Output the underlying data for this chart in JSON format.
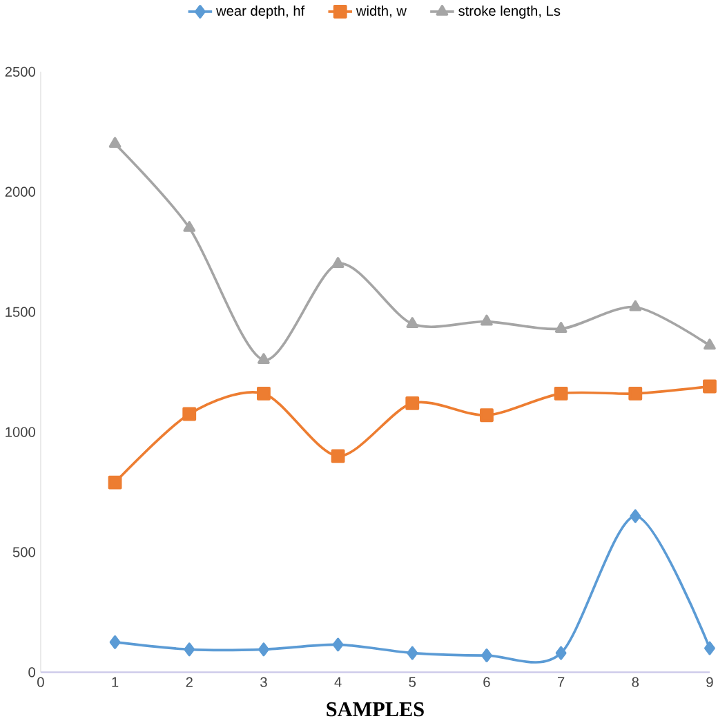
{
  "chart_data": {
    "type": "line",
    "xlabel": "SAMPLES",
    "x": [
      1,
      2,
      3,
      4,
      5,
      6,
      7,
      8,
      9
    ],
    "series": [
      {
        "name": "wear depth, hf",
        "color": "#5b9bd5",
        "marker": "diamond",
        "values": [
          125,
          95,
          95,
          115,
          80,
          70,
          80,
          650,
          100
        ]
      },
      {
        "name": "width, w",
        "color": "#ed7d31",
        "marker": "square",
        "values": [
          790,
          1075,
          1160,
          900,
          1120,
          1070,
          1160,
          1160,
          1190
        ]
      },
      {
        "name": "stroke length, Ls",
        "color": "#a5a5a5",
        "marker": "triangle",
        "values": [
          2200,
          1850,
          1300,
          1700,
          1450,
          1460,
          1430,
          1520,
          1360
        ]
      }
    ],
    "xlim": [
      0,
      9
    ],
    "xticks": [
      0,
      1,
      2,
      3,
      4,
      5,
      6,
      7,
      8,
      9
    ],
    "ylim": [
      0,
      2500
    ],
    "yticks": [
      0,
      500,
      1000,
      1500,
      2000,
      2500
    ],
    "grid": false,
    "legend": "top",
    "line_style": "solid"
  }
}
